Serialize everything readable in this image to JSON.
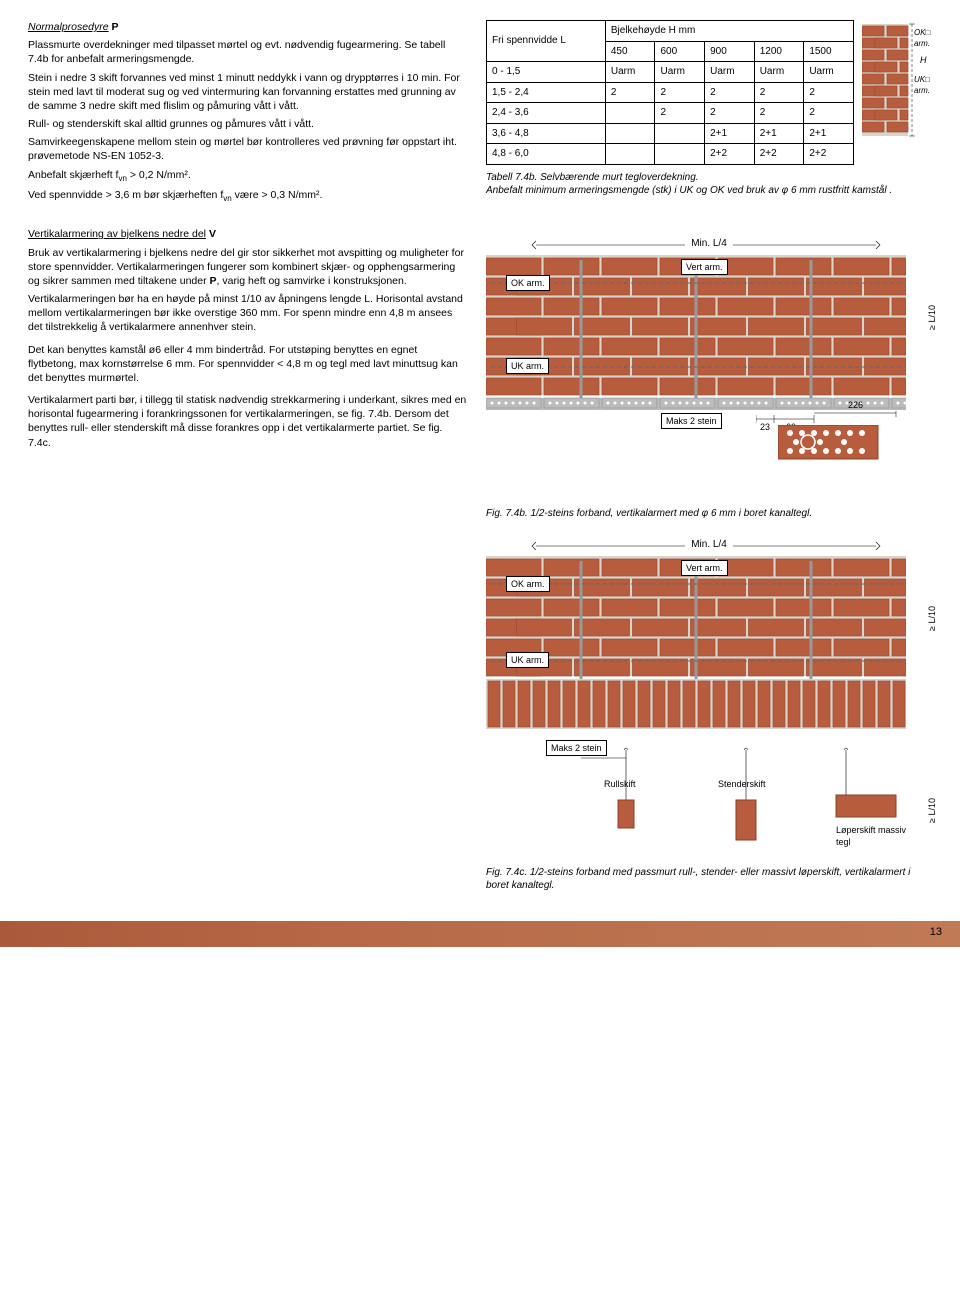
{
  "text": {
    "p1_title": "Normalprosedyre",
    "p1_title_suffix": "P",
    "p1_a": "Plassmurte overdekninger med tilpasset mørtel og evt. nødvendig fugearmering. Se tabell 7.4b for anbefalt armeringsmengde.",
    "p1_b": "Stein i nedre 3 skift forvannes ved minst 1 minutt neddykk i vann og drypptørres i 10 min. For stein med lavt til moderat sug og ved vintermuring kan forvanning erstattes med grunning av de samme 3 nedre skift med flislim og påmuring vått i vått.",
    "p1_c": "Rull- og stenderskift skal alltid grunnes og påmures vått i vått.",
    "p1_d": "Samvirkeegenskapene mellom stein og mørtel bør kontrolleres ved prøvning før oppstart iht. prøvemetode NS-EN 1052-3.",
    "p1_e_pre": "Anbefalt skjærheft f",
    "p1_e_post": " > 0,2 N/mm².",
    "p1_f_pre": "Ved spennvidde > 3,6 m bør skjærheften f",
    "p1_f_post": " være > 0,3 N/mm².",
    "p2_title": "Vertikalarmering av bjelkens nedre del",
    "p2_title_suffix": "V",
    "p2_a": "Bruk av vertikalarmering i bjelkens nedre del gir stor sikkerhet mot avspitting og muligheter for store spennvidder. Vertikalarmeringen fungerer som kombinert skjær- og opphengsarmering og sikrer sammen med tiltakene under ",
    "p2_a2": ", varig heft og samvirke i konstruksjonen.",
    "p2_b": "Vertikalarmeringen bør ha en høyde på minst 1/10 av åpningens lengde L. Horisontal avstand mellom vertikalarmeringen bør ikke overstige 360 mm. For spenn mindre enn 4,8 m ansees det tilstrekkelig å vertikalarmere annenhver stein.",
    "p2_c": "Det kan benyttes kamstål ø6 eller 4 mm bindertråd. For utstøping benyttes en egnet flytbetong, max kornstørrelse 6 mm. For spennvidder < 4,8 m og tegl med lavt minuttsug kan det benyttes murmørtel.",
    "p2_d": "Vertikalarmert parti bør, i tillegg til statisk nødvendig strekkarmering i underkant, sikres med en horisontal fugearmering i forankringssonen for vertikalarmeringen, se fig. 7.4b. Dersom det benyttes rull- eller stenderskift må disse forankres opp i det vertikalarmerte partiet. Se fig. 7.4c.",
    "table_caption": "Tabell 7.4b. Selvbærende murt tegloverdekning.",
    "table_caption2_pre": "Anbefalt minimum armeringsmengde (stk) i UK og OK ved bruk av ",
    "table_caption2_phi": "φ",
    "table_caption2_post": " 6 mm rustfritt kamstål .",
    "fig74b_pre": "Fig. 7.4b. 1/2-steins forband, vertikalarmert med ",
    "fig74b_phi": "φ",
    "fig74b_post": " 6 mm i boret kanaltegl.",
    "fig74c": "Fig. 7.4c. 1/2-steins forband med passmurt rull-, stender- eller massivt løperskift, vertikalarmert i boret kanaltegl.",
    "ok_arm": "OK arm.",
    "uk_arm": "UK arm.",
    "vert_arm": "Vert arm.",
    "min_l4": "Min. L/4",
    "maks2": "Maks 2 stein",
    "l10": "≥ L/10",
    "rullskift": "Rullskift",
    "stenderskift": "Stenderskift",
    "loperskift": "Løperskift massiv tegl",
    "ok_legend": "OK□ arm.",
    "uk_legend": "UK□ arm.",
    "H": "H",
    "dim23": "23",
    "dim60": "60",
    "dim226": "226",
    "page": "13"
  },
  "table": {
    "header1": "Fri spennvidde L",
    "header2": "Bjelkehøyde H mm",
    "cols": [
      "450",
      "600",
      "900",
      "1200",
      "1500"
    ],
    "rows": [
      {
        "l": "0 - 1,5",
        "v": [
          "Uarm",
          "Uarm",
          "Uarm",
          "Uarm",
          "Uarm"
        ]
      },
      {
        "l": "1,5 - 2,4",
        "v": [
          "2",
          "2",
          "2",
          "2",
          "2"
        ]
      },
      {
        "l": "2,4 - 3,6",
        "v": [
          "",
          "2",
          "2",
          "2",
          "2"
        ]
      },
      {
        "l": "3,6 - 4,8",
        "v": [
          "",
          "",
          "2+1",
          "2+1",
          "2+1"
        ]
      },
      {
        "l": "4,8 - 6,0",
        "v": [
          "",
          "",
          "2+2",
          "2+2",
          "2+2"
        ]
      }
    ]
  },
  "colors": {
    "brick": "#b85c3e",
    "brick_dark": "#9e4a30",
    "mortar": "#d8d4cc",
    "gray": "#bcbcbc",
    "dash": "#888"
  }
}
